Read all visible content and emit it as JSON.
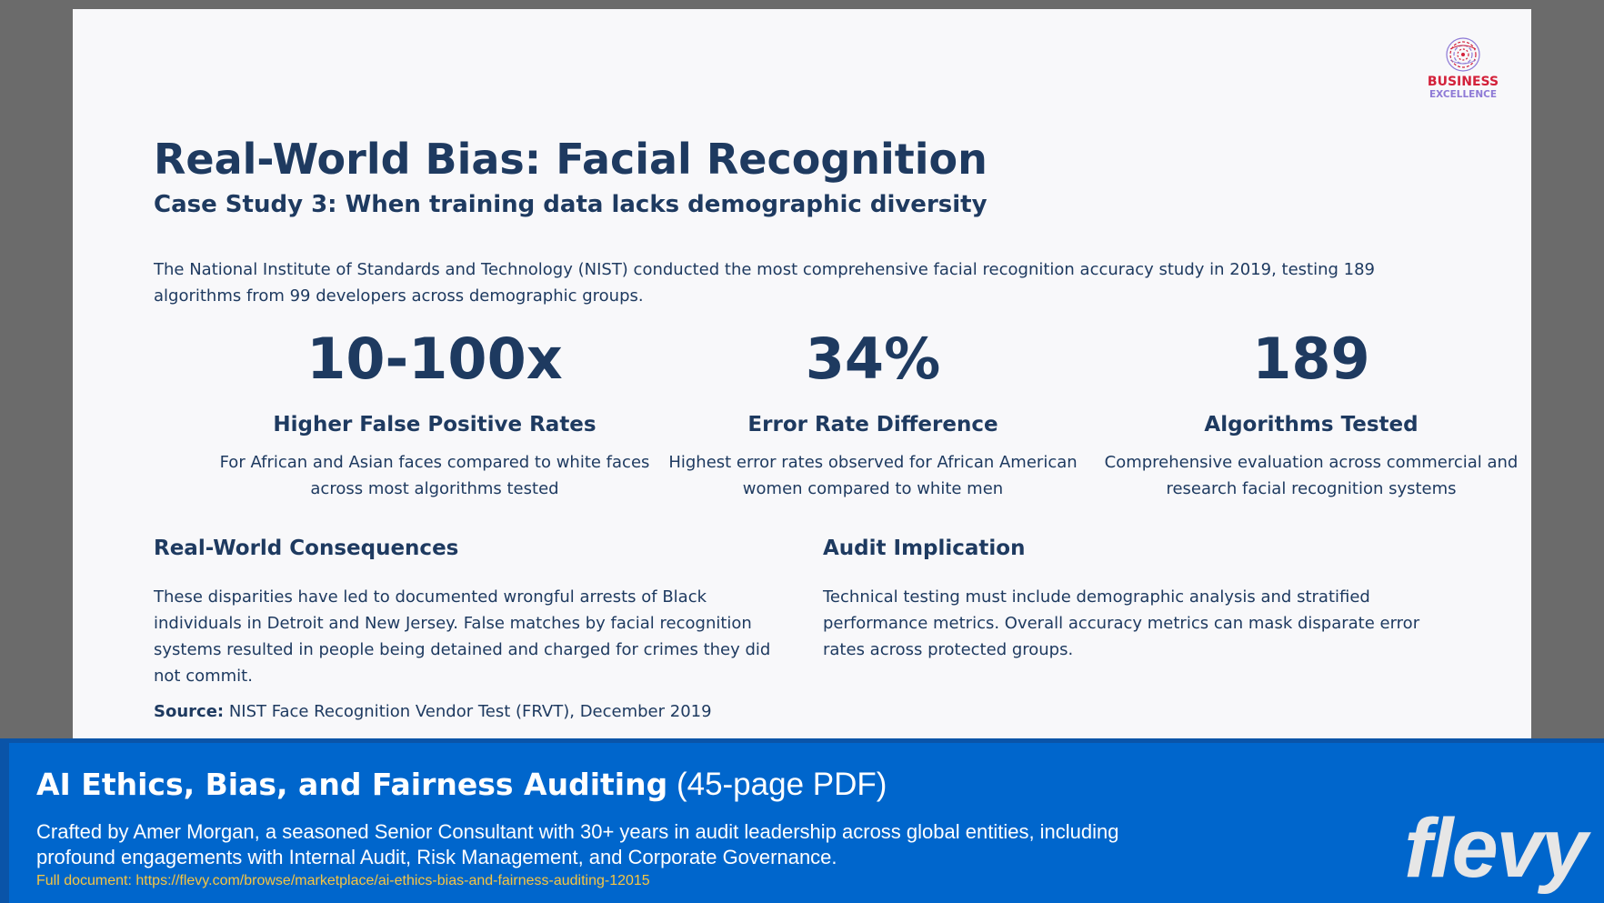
{
  "logo": {
    "line1": "BUSINESS",
    "line2": "EXCELLENCE",
    "icon": "fingerprint-globe-icon",
    "colors": {
      "red": "#d3213a",
      "purple": "#8e7ad6"
    }
  },
  "slide": {
    "title": "Real-World Bias: Facial Recognition",
    "subtitle": "Case Study 3: When training data lacks demographic diversity",
    "intro": "The National Institute of Standards and Technology (NIST) conducted the most comprehensive facial recognition accuracy study in 2019, testing 189 algorithms from 99 developers across demographic groups.",
    "stats": [
      {
        "value": "10-100x",
        "label": "Higher False Positive Rates",
        "desc": "For African and Asian faces compared to white faces across most algorithms tested"
      },
      {
        "value": "34%",
        "label": "Error Rate Difference",
        "desc": "Highest error rates observed for African American women compared to white men"
      },
      {
        "value": "189",
        "label": "Algorithms Tested",
        "desc": "Comprehensive evaluation across commercial and research facial recognition systems"
      }
    ],
    "consequences": {
      "heading": "Real-World Consequences",
      "body": "These disparities have led to documented wrongful arrests of Black individuals in Detroit and New Jersey. False matches by facial recognition systems resulted in people being detained and charged for crimes they did not commit."
    },
    "audit": {
      "heading": "Audit Implication",
      "body": "Technical testing must include demographic analysis and stratified performance metrics. Overall accuracy metrics can mask disparate error rates across protected groups."
    },
    "source": {
      "label": "Source:",
      "text": " NIST Face Recognition Vendor Test (FRVT), December 2019"
    },
    "text_color": "#1e3a60"
  },
  "banner": {
    "title_main": "AI Ethics, Bias, and Fairness Auditing",
    "title_sub": " (45-page PDF)",
    "description": "Crafted by Amer Morgan, a seasoned Senior Consultant with 30+ years in audit leadership across global entities, including profound engagements with Internal Audit, Risk Management, and Corporate Governance.",
    "link": "Full document: https://flevy.com/browse/marketplace/ai-ethics-bias-and-fairness-auditing-12015",
    "brand": "flevy",
    "colors": {
      "background": "#0066cc",
      "link": "#f5c542"
    }
  }
}
